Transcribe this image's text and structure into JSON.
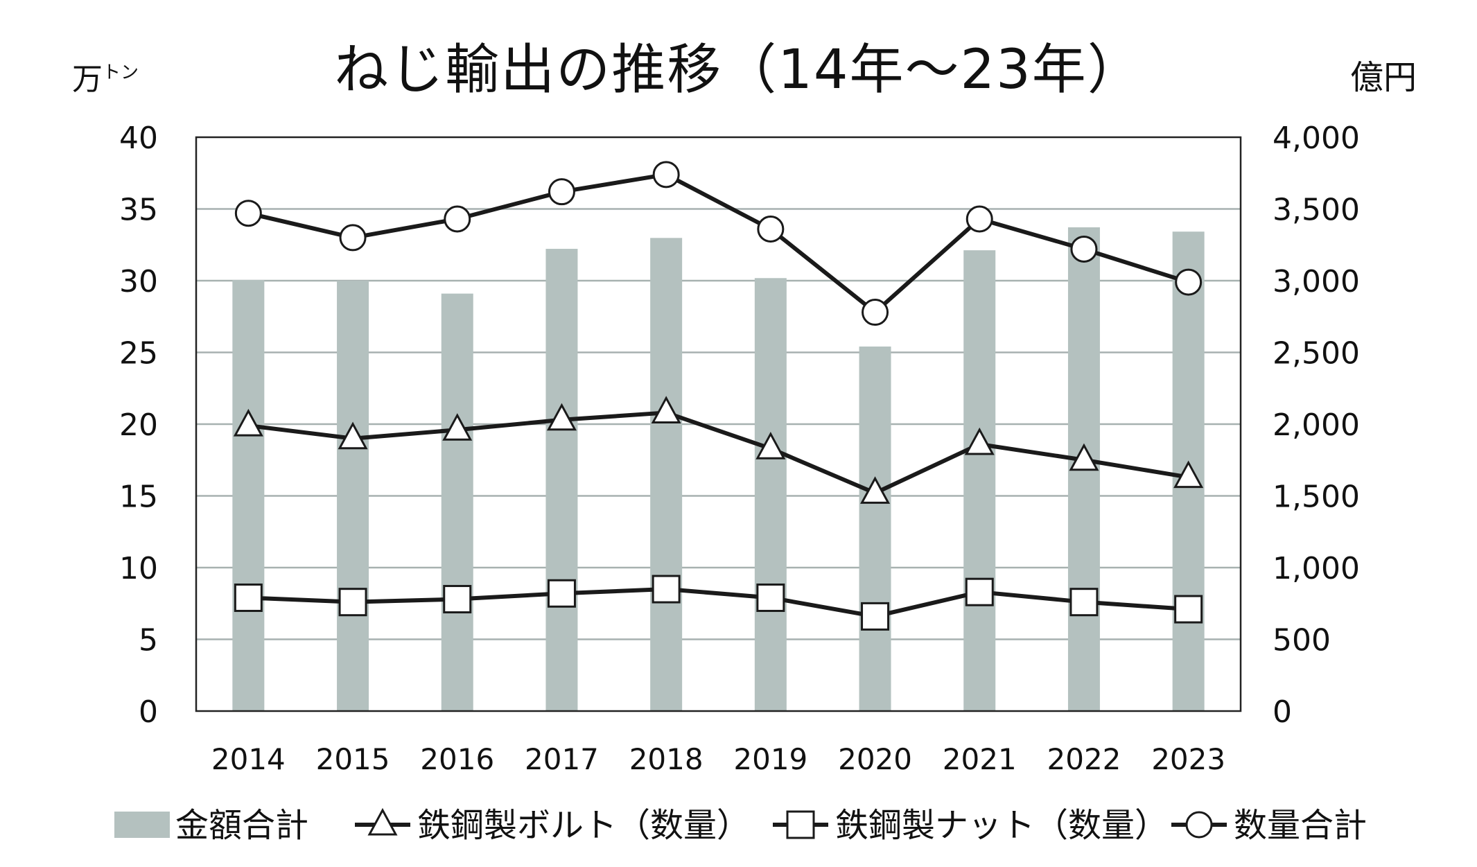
{
  "chart_data": {
    "type": "bar",
    "title": "ねじ輸出の推移（14年～23年）",
    "unit_left_main": "万",
    "unit_left_sup": "トン",
    "unit_right": "億円",
    "categories": [
      "2014",
      "2015",
      "2016",
      "2017",
      "2018",
      "2019",
      "2020",
      "2021",
      "2022",
      "2023"
    ],
    "y_left": {
      "range": [
        0,
        40
      ],
      "ticks": [
        0,
        5,
        10,
        15,
        20,
        25,
        30,
        35,
        40
      ],
      "tick_labels": [
        "0",
        "5",
        "10",
        "15",
        "20",
        "25",
        "30",
        "35",
        "40"
      ]
    },
    "y_right": {
      "range": [
        0,
        4000
      ],
      "ticks": [
        0,
        500,
        1000,
        1500,
        2000,
        2500,
        3000,
        3500,
        4000
      ],
      "tick_labels": [
        "0",
        "500",
        "1,000",
        "1,500",
        "2,000",
        "2,500",
        "3,000",
        "3,500",
        "4,000"
      ]
    },
    "grid": true,
    "legend_position": "bottom",
    "series": [
      {
        "name": "金額合計",
        "kind": "bar",
        "axis": "right",
        "color": "#b4c1bf",
        "values": [
          3005,
          3000,
          2910,
          3222,
          3298,
          3018,
          2541,
          3212,
          3372,
          3342
        ]
      },
      {
        "name": "鉄鋼製ボルト（数量）",
        "kind": "line",
        "axis": "left",
        "marker": "triangle",
        "color": "#1a1a1a",
        "values": [
          19.9,
          19.0,
          19.6,
          20.3,
          20.8,
          18.3,
          15.2,
          18.6,
          17.5,
          16.3
        ]
      },
      {
        "name": "鉄鋼製ナット（数量）",
        "kind": "line",
        "axis": "left",
        "marker": "square",
        "color": "#1a1a1a",
        "values": [
          7.9,
          7.6,
          7.8,
          8.2,
          8.5,
          7.9,
          6.6,
          8.3,
          7.6,
          7.1
        ]
      },
      {
        "name": "数量合計",
        "kind": "line",
        "axis": "left",
        "marker": "circle",
        "color": "#1a1a1a",
        "values": [
          34.7,
          33.0,
          34.3,
          36.2,
          37.4,
          33.6,
          27.8,
          34.3,
          32.2,
          29.9
        ]
      }
    ]
  },
  "colors": {
    "bar": "#b4c1bf",
    "grid": "#a7b1b0",
    "axis": "#222222",
    "line": "#1a1a1a",
    "marker_fill": "#ffffff"
  }
}
